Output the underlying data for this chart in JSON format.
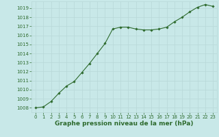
{
  "x": [
    0,
    1,
    2,
    3,
    4,
    5,
    6,
    7,
    8,
    9,
    10,
    11,
    12,
    13,
    14,
    15,
    16,
    17,
    18,
    19,
    20,
    21,
    22,
    23
  ],
  "y": [
    1008.0,
    1008.1,
    1008.7,
    1009.6,
    1010.4,
    1010.9,
    1011.9,
    1012.9,
    1014.0,
    1015.1,
    1016.7,
    1016.9,
    1016.9,
    1016.7,
    1016.6,
    1016.6,
    1016.7,
    1016.9,
    1017.5,
    1018.0,
    1018.6,
    1019.1,
    1019.4,
    1019.2
  ],
  "line_color": "#2d6a2d",
  "marker_color": "#2d6a2d",
  "bg_color": "#c8e8e8",
  "xlabel": "Graphe pression niveau de la mer (hPa)",
  "xlabel_color": "#2d6a2d",
  "ylabel_ticks": [
    1008,
    1009,
    1010,
    1011,
    1012,
    1013,
    1014,
    1015,
    1016,
    1017,
    1018,
    1019
  ],
  "ylim": [
    1007.5,
    1019.75
  ],
  "xlim": [
    -0.5,
    23.5
  ],
  "xticks": [
    0,
    1,
    2,
    3,
    4,
    5,
    6,
    7,
    8,
    9,
    10,
    11,
    12,
    13,
    14,
    15,
    16,
    17,
    18,
    19,
    20,
    21,
    22,
    23
  ],
  "tick_color": "#2d6a2d",
  "tick_fontsize": 5.0,
  "xlabel_fontsize": 6.5,
  "grid_color": "#b8d8d8"
}
